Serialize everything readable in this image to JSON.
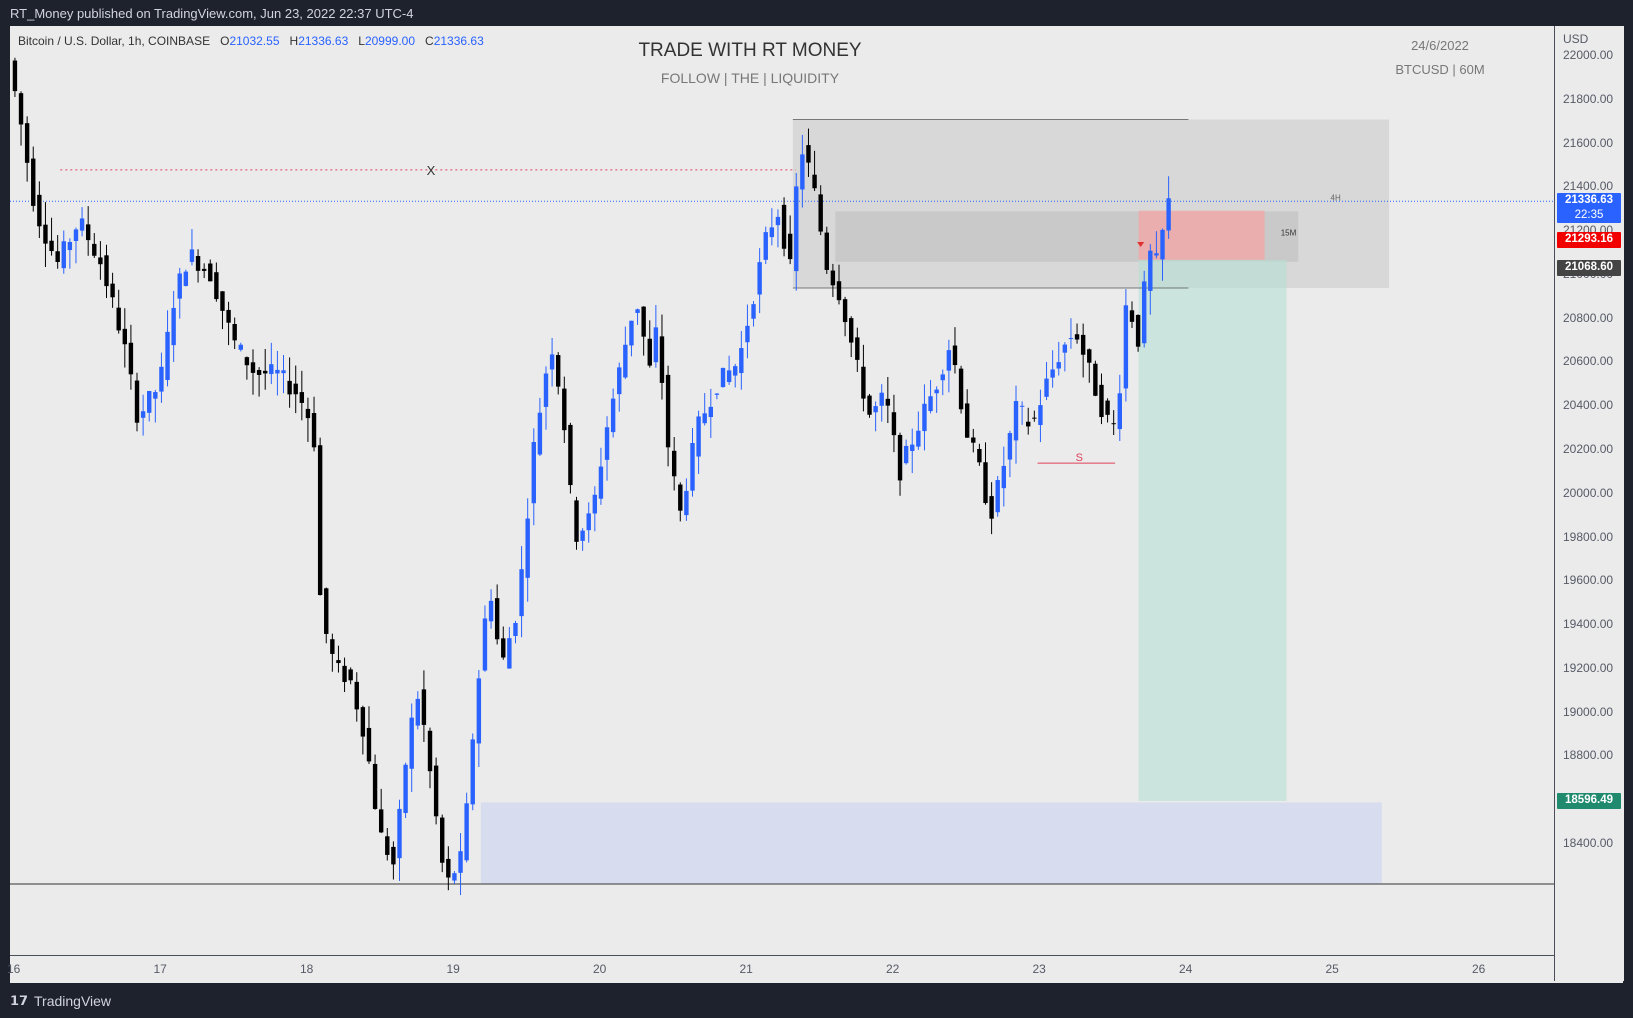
{
  "publisher_line": "RT_Money published on TradingView.com, Jun 23, 2022 22:37 UTC-4",
  "legend": {
    "symbol": "Bitcoin / U.S. Dollar, 1h, COINBASE",
    "open_label": "O",
    "open": "21032.55",
    "high_label": "H",
    "high": "21336.63",
    "low_label": "L",
    "low": "20999.00",
    "close_label": "C",
    "close": "21336.63"
  },
  "caption": {
    "title": "TRADE WITH RT MONEY",
    "subtitle": "FOLLOW   | THE |   LIQUIDITY",
    "date": "24/6/2022",
    "symbol_tf": "BTCUSD | 60M"
  },
  "annotations": {
    "x_mark": "X",
    "s_mark": "S",
    "tf_4h": "4H",
    "tf_15m": "15M"
  },
  "price_axis": {
    "currency": "USD",
    "ticks": [
      "22000.00",
      "21800.00",
      "21600.00",
      "21400.00",
      "21200.00",
      "21000.00",
      "20800.00",
      "20600.00",
      "20400.00",
      "20200.00",
      "20000.00",
      "19800.00",
      "19600.00",
      "19400.00",
      "19200.00",
      "19000.00",
      "18800.00",
      "18600.00",
      "18400.00"
    ],
    "current_price": "21336.63",
    "countdown": "22:35",
    "stop_price": "21293.16",
    "entry_price": "21068.60",
    "target_price": "18596.49"
  },
  "time_axis": {
    "ticks": [
      "16",
      "17",
      "18",
      "19",
      "20",
      "21",
      "22",
      "23",
      "24",
      "25",
      "26"
    ]
  },
  "colors": {
    "up": "#2962ff",
    "down": "#000000",
    "stop_zone": "#f2a8a8",
    "target_zone": "#b5e0d4",
    "demand_zone": "#d3daf0",
    "supply_zone": "#c9c9c9",
    "current_label": "#2962ff",
    "stop_label": "#f20000",
    "entry_label": "#444444",
    "target_label": "#1f8a6e"
  },
  "chart_data": {
    "type": "candlestick",
    "symbol": "BTCUSD",
    "timeframe": "1h",
    "exchange": "COINBASE",
    "ylim": [
      18100,
      22100
    ],
    "x_range": [
      "16",
      "26"
    ],
    "reference_lines": [
      {
        "label": "X",
        "price": 21480
      },
      {
        "label": "current",
        "price": 21336.63
      }
    ],
    "zones": [
      {
        "name": "4H",
        "from_price": 20940,
        "to_price": 21710
      },
      {
        "name": "15M",
        "from_price": 21060,
        "to_price": 21290
      },
      {
        "name": "stop",
        "from_price": 21068.6,
        "to_price": 21293.16
      },
      {
        "name": "target",
        "from_price": 18596.49,
        "to_price": 21068.6
      },
      {
        "name": "demand",
        "from_price": 18220,
        "to_price": 18590
      }
    ],
    "waypoints": [
      [
        16.0,
        22050
      ],
      [
        16.1,
        21700
      ],
      [
        16.2,
        21300
      ],
      [
        16.35,
        21050
      ],
      [
        16.5,
        21250
      ],
      [
        16.65,
        21050
      ],
      [
        16.8,
        20700
      ],
      [
        16.9,
        20350
      ],
      [
        17.05,
        20500
      ],
      [
        17.15,
        20900
      ],
      [
        17.25,
        21100
      ],
      [
        17.4,
        21000
      ],
      [
        17.55,
        20700
      ],
      [
        17.7,
        20550
      ],
      [
        17.85,
        20550
      ],
      [
        18.0,
        20450
      ],
      [
        18.1,
        20300
      ],
      [
        18.15,
        19450
      ],
      [
        18.25,
        19200
      ],
      [
        18.35,
        19150
      ],
      [
        18.45,
        18900
      ],
      [
        18.55,
        18450
      ],
      [
        18.65,
        18300
      ],
      [
        18.75,
        18900
      ],
      [
        18.82,
        19100
      ],
      [
        18.9,
        18700
      ],
      [
        19.0,
        18200
      ],
      [
        19.12,
        18350
      ],
      [
        19.2,
        19000
      ],
      [
        19.3,
        19600
      ],
      [
        19.38,
        19200
      ],
      [
        19.5,
        19500
      ],
      [
        19.6,
        20200
      ],
      [
        19.72,
        20700
      ],
      [
        19.8,
        20400
      ],
      [
        19.88,
        19800
      ],
      [
        20.0,
        19900
      ],
      [
        20.1,
        20300
      ],
      [
        20.2,
        20600
      ],
      [
        20.3,
        20900
      ],
      [
        20.4,
        20550
      ],
      [
        20.45,
        20800
      ],
      [
        20.5,
        20300
      ],
      [
        20.6,
        19900
      ],
      [
        20.72,
        20300
      ],
      [
        20.85,
        20500
      ],
      [
        21.0,
        20600
      ],
      [
        21.1,
        20900
      ],
      [
        21.2,
        21200
      ],
      [
        21.28,
        21300
      ],
      [
        21.35,
        21000
      ],
      [
        21.42,
        21600
      ],
      [
        21.5,
        21450
      ],
      [
        21.6,
        21050
      ],
      [
        21.7,
        20900
      ],
      [
        21.8,
        20600
      ],
      [
        21.9,
        20350
      ],
      [
        22.0,
        20450
      ],
      [
        22.1,
        20100
      ],
      [
        22.25,
        20350
      ],
      [
        22.35,
        20500
      ],
      [
        22.45,
        20700
      ],
      [
        22.55,
        20300
      ],
      [
        22.65,
        20100
      ],
      [
        22.72,
        19900
      ],
      [
        22.8,
        20100
      ],
      [
        22.9,
        20400
      ],
      [
        23.0,
        20300
      ],
      [
        23.1,
        20500
      ],
      [
        23.2,
        20650
      ],
      [
        23.3,
        20750
      ],
      [
        23.4,
        20550
      ],
      [
        23.5,
        20350
      ],
      [
        23.58,
        20300
      ],
      [
        23.65,
        20900
      ],
      [
        23.73,
        20700
      ],
      [
        23.8,
        21100
      ],
      [
        23.86,
        21050
      ],
      [
        23.93,
        21330
      ]
    ]
  }
}
